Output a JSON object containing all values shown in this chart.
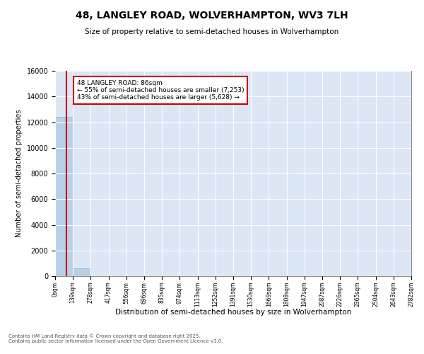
{
  "title": "48, LANGLEY ROAD, WOLVERHAMPTON, WV3 7LH",
  "subtitle": "Size of property relative to semi-detached houses in Wolverhampton",
  "xlabel": "Distribution of semi-detached houses by size in Wolverhampton",
  "ylabel": "Number of semi-detached properties",
  "property_size": 86,
  "property_label": "48 LANGLEY ROAD: 86sqm",
  "pct_smaller": 55,
  "count_smaller": 7253,
  "pct_larger": 43,
  "count_larger": 5628,
  "bin_edges": [
    0,
    139,
    278,
    417,
    556,
    696,
    835,
    974,
    1113,
    1252,
    1391,
    1530,
    1669,
    1808,
    1947,
    2087,
    2226,
    2365,
    2504,
    2643,
    2782
  ],
  "bin_counts": [
    12400,
    600,
    0,
    0,
    0,
    0,
    0,
    0,
    0,
    0,
    0,
    0,
    0,
    0,
    0,
    0,
    0,
    0,
    0,
    0
  ],
  "bar_color": "#b8cfe8",
  "bar_edge_color": "#8aafd4",
  "red_line_color": "#cc0000",
  "annotation_box_color": "#cc0000",
  "background_color": "#dce6f5",
  "grid_color": "#ffffff",
  "ylim": [
    0,
    16000
  ],
  "yticks": [
    0,
    2000,
    4000,
    6000,
    8000,
    10000,
    12000,
    14000,
    16000
  ],
  "footer_line1": "Contains HM Land Registry data © Crown copyright and database right 2025.",
  "footer_line2": "Contains public sector information licensed under the Open Government Licence v3.0."
}
